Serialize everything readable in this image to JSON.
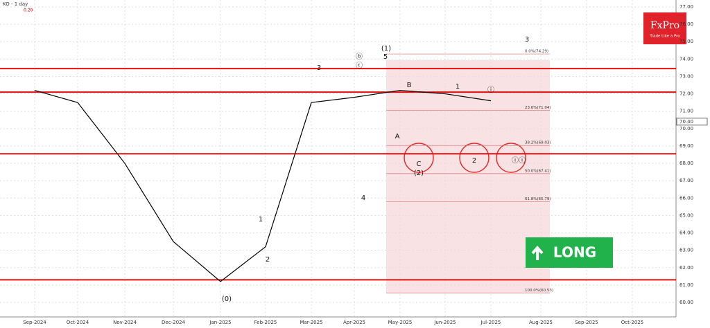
{
  "chart_data": {
    "type": "line",
    "symbol": "KO - 1 day",
    "indicator": "0.20",
    "categories": [
      "Sep-2024",
      "Oct-2024",
      "Nov-2024",
      "Dec-2024",
      "Jan-2025",
      "Feb-2025",
      "Mar-2025",
      "Apr-2025",
      "May-2025",
      "Jun-2025",
      "Jul-2025",
      "Aug-2025",
      "Sep-2025",
      "Oct-2025"
    ],
    "series": [
      {
        "name": "KO",
        "color": "#000000",
        "values": [
          72.2,
          71.5,
          68,
          63.5,
          61.2,
          63.2,
          71.5,
          71.8,
          72.2,
          72,
          71.6,
          null,
          null,
          null
        ]
      }
    ],
    "ylim": [
      60,
      77
    ],
    "yticks": [
      {
        "value": 60,
        "label": "60.00"
      },
      {
        "value": 61,
        "label": "61.00"
      },
      {
        "value": 62,
        "label": "62.00"
      },
      {
        "value": 63,
        "label": "63.00"
      },
      {
        "value": 64,
        "label": "64.00"
      },
      {
        "value": 65,
        "label": "65.00"
      },
      {
        "value": 66,
        "label": "66.00"
      },
      {
        "value": 67,
        "label": "67.00"
      },
      {
        "value": 68,
        "label": "68.00"
      },
      {
        "value": 69,
        "label": "69.00"
      },
      {
        "value": 70,
        "label": "70.00"
      },
      {
        "value": 71,
        "label": "71.00"
      },
      {
        "value": 72,
        "label": "72.00"
      },
      {
        "value": 73,
        "label": "73.00"
      },
      {
        "value": 74,
        "label": "74.00"
      },
      {
        "value": 75,
        "label": "75.00"
      },
      {
        "value": 76,
        "label": "76.00"
      },
      {
        "value": 77,
        "label": "77.00"
      }
    ],
    "last_price": {
      "value": 70.4,
      "label": "70.40"
    },
    "levels": [
      73.45,
      72.1,
      68.55,
      61.3
    ],
    "fib": [
      {
        "value": 74.29,
        "label": "0.0%(74.29)"
      },
      {
        "value": 71.04,
        "label": "23.6%(71.04)"
      },
      {
        "value": 69.03,
        "label": "38.2%(69.03)"
      },
      {
        "value": 67.41,
        "label": "50.0%(67.41)"
      },
      {
        "value": 65.79,
        "label": "61.8%(65.79)"
      },
      {
        "value": 60.53,
        "label": "100.0%(60.53)"
      }
    ],
    "annotations": [
      "(1)",
      "5",
      "3",
      "B",
      "A",
      "C",
      "(2)",
      "1",
      "2",
      "4",
      "(0)",
      "1",
      "2",
      "3",
      "ⓑ",
      "ⓒ",
      "ⓘ",
      "ⓘⓘ"
    ],
    "logo": {
      "name": "FxPro",
      "tagline": "Trade Like a Pro"
    },
    "signal": "LONG"
  }
}
